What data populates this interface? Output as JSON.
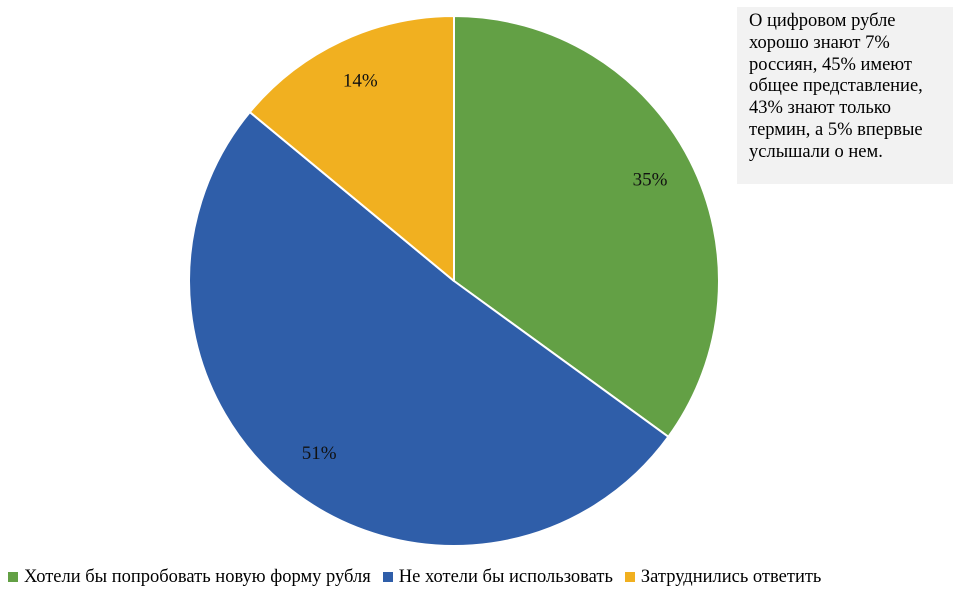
{
  "chart_data": {
    "type": "pie",
    "categories": [
      "Хотели бы попробовать новую форму рубля",
      "Не хотели бы использовать",
      "Затруднились ответить"
    ],
    "values": [
      35,
      51,
      14
    ],
    "labels": [
      "35%",
      "51%",
      "14%"
    ],
    "colors": [
      "#63a045",
      "#2f5ea9",
      "#f1b020"
    ],
    "start_angle_deg": 0,
    "direction": "clockwise",
    "legend_position": "bottom"
  },
  "note": {
    "text": "О цифровом рубле хорошо знают 7% россиян, 45% имеют общее представление, 43% знают только термин, а 5% впервые услышали о нем."
  },
  "legend": {
    "items": [
      {
        "label": "Хотели бы попробовать новую форму рубля",
        "color": "#63a045"
      },
      {
        "label": "Не хотели бы использовать",
        "color": "#2f5ea9"
      },
      {
        "label": "Затруднились ответить",
        "color": "#f1b020"
      }
    ]
  }
}
